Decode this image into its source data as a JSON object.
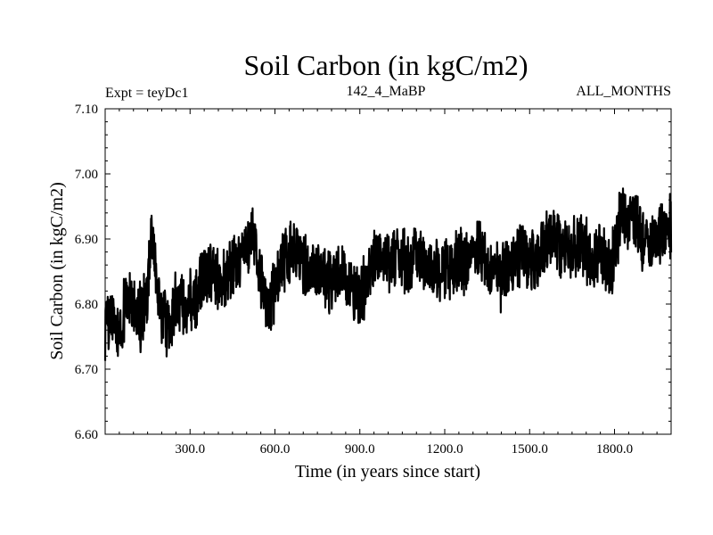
{
  "chart_data": {
    "type": "line",
    "title": "Soil Carbon (in kgC/m2)",
    "subtitle_left": "Expt = teyDc1",
    "subtitle_center": "142_4_MaBP",
    "subtitle_right": "ALL_MONTHS",
    "xlabel": "Time (in years since start)",
    "ylabel": "Soil Carbon (in kgC/m2)",
    "xlim": [
      0,
      2000
    ],
    "ylim": [
      6.6,
      7.1
    ],
    "x_ticks": [
      300,
      600,
      900,
      1200,
      1500,
      1800
    ],
    "x_tick_labels": [
      "300.0",
      "600.0",
      "900.0",
      "1200.0",
      "1500.0",
      "1800.0"
    ],
    "y_ticks": [
      6.6,
      6.7,
      6.8,
      6.9,
      7.0,
      7.1
    ],
    "y_tick_labels": [
      "6.60",
      "6.70",
      "6.80",
      "6.90",
      "7.00",
      "7.10"
    ],
    "grid": false,
    "series": [
      {
        "name": "Soil Carbon",
        "color": "#000000",
        "x": [
          0,
          25,
          50,
          75,
          100,
          125,
          150,
          165,
          175,
          200,
          225,
          250,
          275,
          300,
          325,
          350,
          375,
          400,
          425,
          450,
          475,
          500,
          525,
          550,
          575,
          600,
          625,
          650,
          675,
          700,
          725,
          750,
          775,
          800,
          825,
          850,
          875,
          900,
          925,
          950,
          975,
          1000,
          1025,
          1050,
          1075,
          1100,
          1125,
          1150,
          1175,
          1200,
          1225,
          1250,
          1275,
          1300,
          1325,
          1350,
          1375,
          1400,
          1425,
          1450,
          1475,
          1500,
          1525,
          1550,
          1575,
          1600,
          1625,
          1650,
          1675,
          1700,
          1725,
          1750,
          1775,
          1800,
          1825,
          1850,
          1875,
          1900,
          1925,
          1950,
          1975,
          2000
        ],
        "values": [
          6.75,
          6.78,
          6.74,
          6.82,
          6.79,
          6.78,
          6.82,
          6.92,
          6.86,
          6.79,
          6.76,
          6.8,
          6.8,
          6.8,
          6.81,
          6.84,
          6.85,
          6.84,
          6.83,
          6.86,
          6.86,
          6.88,
          6.91,
          6.83,
          6.8,
          6.82,
          6.86,
          6.87,
          6.88,
          6.86,
          6.85,
          6.86,
          6.84,
          6.83,
          6.85,
          6.84,
          6.82,
          6.81,
          6.84,
          6.86,
          6.87,
          6.86,
          6.88,
          6.87,
          6.86,
          6.88,
          6.86,
          6.85,
          6.86,
          6.85,
          6.86,
          6.87,
          6.86,
          6.87,
          6.88,
          6.86,
          6.85,
          6.84,
          6.86,
          6.87,
          6.88,
          6.86,
          6.87,
          6.9,
          6.91,
          6.9,
          6.88,
          6.89,
          6.9,
          6.88,
          6.87,
          6.88,
          6.86,
          6.87,
          6.94,
          6.92,
          6.93,
          6.9,
          6.89,
          6.9,
          6.91,
          6.92
        ]
      }
    ]
  }
}
